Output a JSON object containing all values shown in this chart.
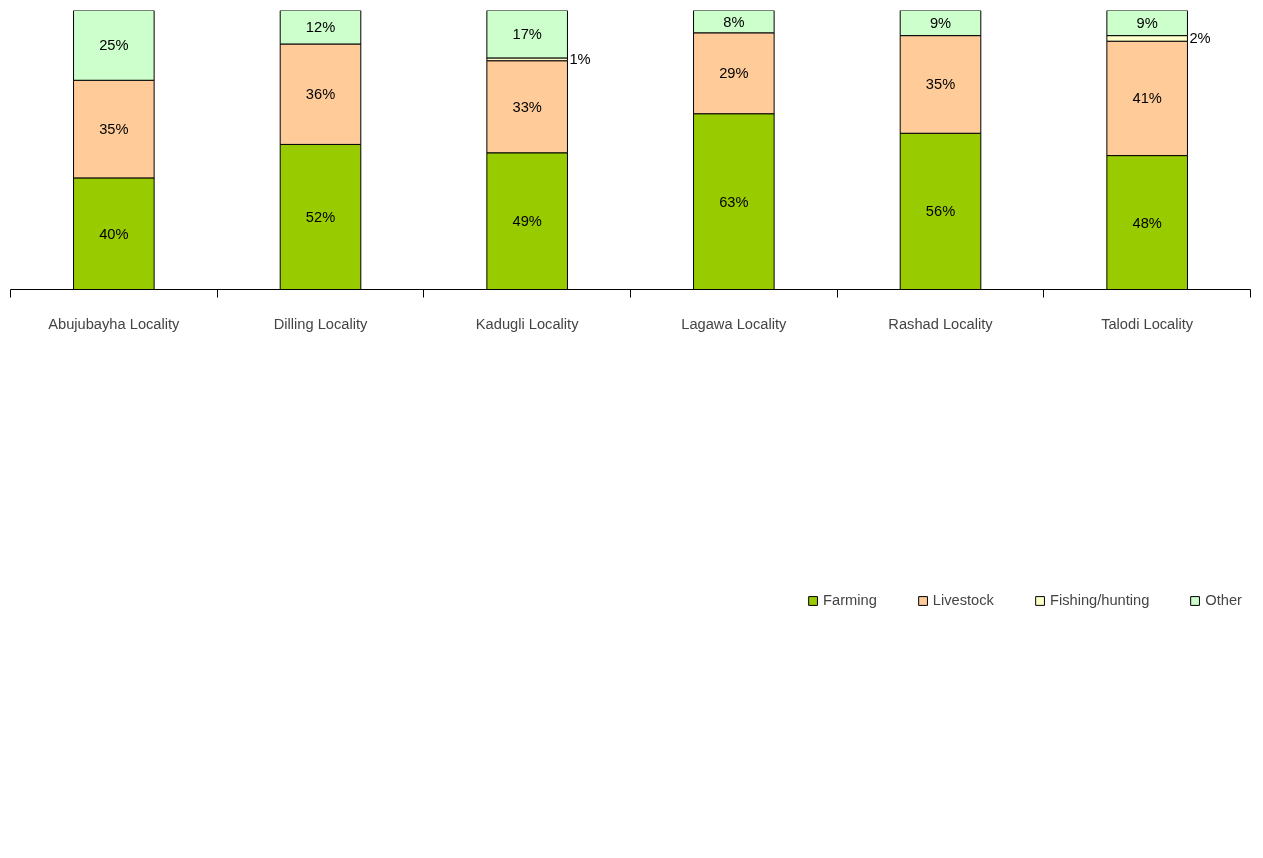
{
  "chart_data": {
    "type": "bar",
    "stacked": true,
    "categories": [
      "Abujubayha Locality",
      "Dilling Locality",
      "Kadugli Locality",
      "Lagawa Locality",
      "Rashad Locality",
      "Talodi Locality"
    ],
    "series": [
      {
        "name": "Farming",
        "color": "#99cc00",
        "values": [
          40,
          52,
          49,
          63,
          56,
          48
        ],
        "value_labels": [
          "40%",
          "52%",
          "49%",
          "63%",
          "56%",
          "48%"
        ]
      },
      {
        "name": "Livestock",
        "color": "#ffcc99",
        "values": [
          35,
          36,
          33,
          29,
          35,
          41
        ],
        "value_labels": [
          "35%",
          "36%",
          "33%",
          "29%",
          "35%",
          "41%"
        ]
      },
      {
        "name": "Fishing/hunting",
        "color": "#ffffcc",
        "values": [
          null,
          null,
          1,
          null,
          null,
          2
        ],
        "value_labels": [
          null,
          null,
          "1%",
          null,
          null,
          "2%"
        ]
      },
      {
        "name": "Other",
        "color": "#ccffcc",
        "values": [
          25,
          12,
          17,
          8,
          9,
          9
        ],
        "value_labels": [
          "25%",
          "12%",
          "17%",
          "8%",
          "9%",
          "9%"
        ]
      }
    ],
    "ylim": [
      0,
      100
    ],
    "tick_labels": "x",
    "grid": false,
    "legend": "bottom"
  }
}
